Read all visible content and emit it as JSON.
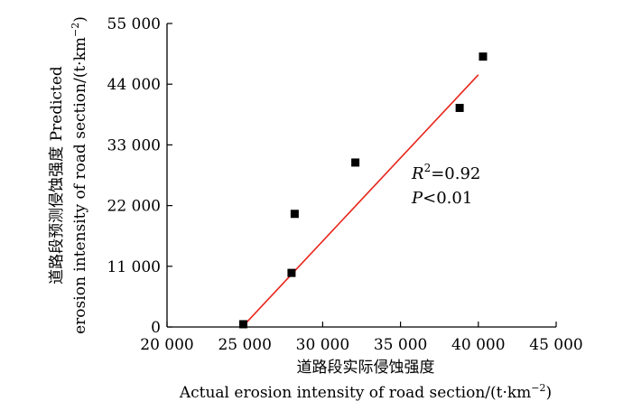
{
  "chart_data": {
    "type": "scatter",
    "xlabel_cn": "道路段实际侵蚀强度",
    "xlabel_en": {
      "text": "Actual erosion intensity of road section/(t",
      "unit_mid": "km",
      "sup": "−2",
      "close": ")"
    },
    "ylabel_cn": "道路段预测侵蚀强度 Predicted",
    "ylabel_en": {
      "text": "erosion intensity of road section/(t",
      "unit_mid": "km",
      "sup": "−2",
      "close": ")"
    },
    "xlim": [
      20000,
      45000
    ],
    "ylim": [
      0,
      55000
    ],
    "xticks": [
      20000,
      25000,
      30000,
      35000,
      40000,
      45000
    ],
    "xtick_labels": [
      "20 000",
      "25 000",
      "30 000",
      "35 000",
      "40 000",
      "45 000"
    ],
    "yticks": [
      0,
      11000,
      22000,
      33000,
      44000,
      55000
    ],
    "ytick_labels": [
      "0",
      "11 000",
      "22 000",
      "33 000",
      "44 000",
      "55 000"
    ],
    "series": [
      {
        "points": [
          {
            "x": 24900,
            "y": 500
          },
          {
            "x": 28000,
            "y": 9800
          },
          {
            "x": 28200,
            "y": 20500
          },
          {
            "x": 32100,
            "y": 29800
          },
          {
            "x": 38800,
            "y": 39700
          },
          {
            "x": 40300,
            "y": 49000
          }
        ],
        "color": "#000000"
      }
    ],
    "fit_line": {
      "x": [
        25000,
        40000
      ],
      "y": [
        500,
        45700
      ],
      "color": "#e8261c"
    },
    "annotations": {
      "r2": {
        "var": "R",
        "sup": "2",
        "rest": "=0.92"
      },
      "p": {
        "var": "P",
        "rest": "<0.01"
      }
    }
  }
}
